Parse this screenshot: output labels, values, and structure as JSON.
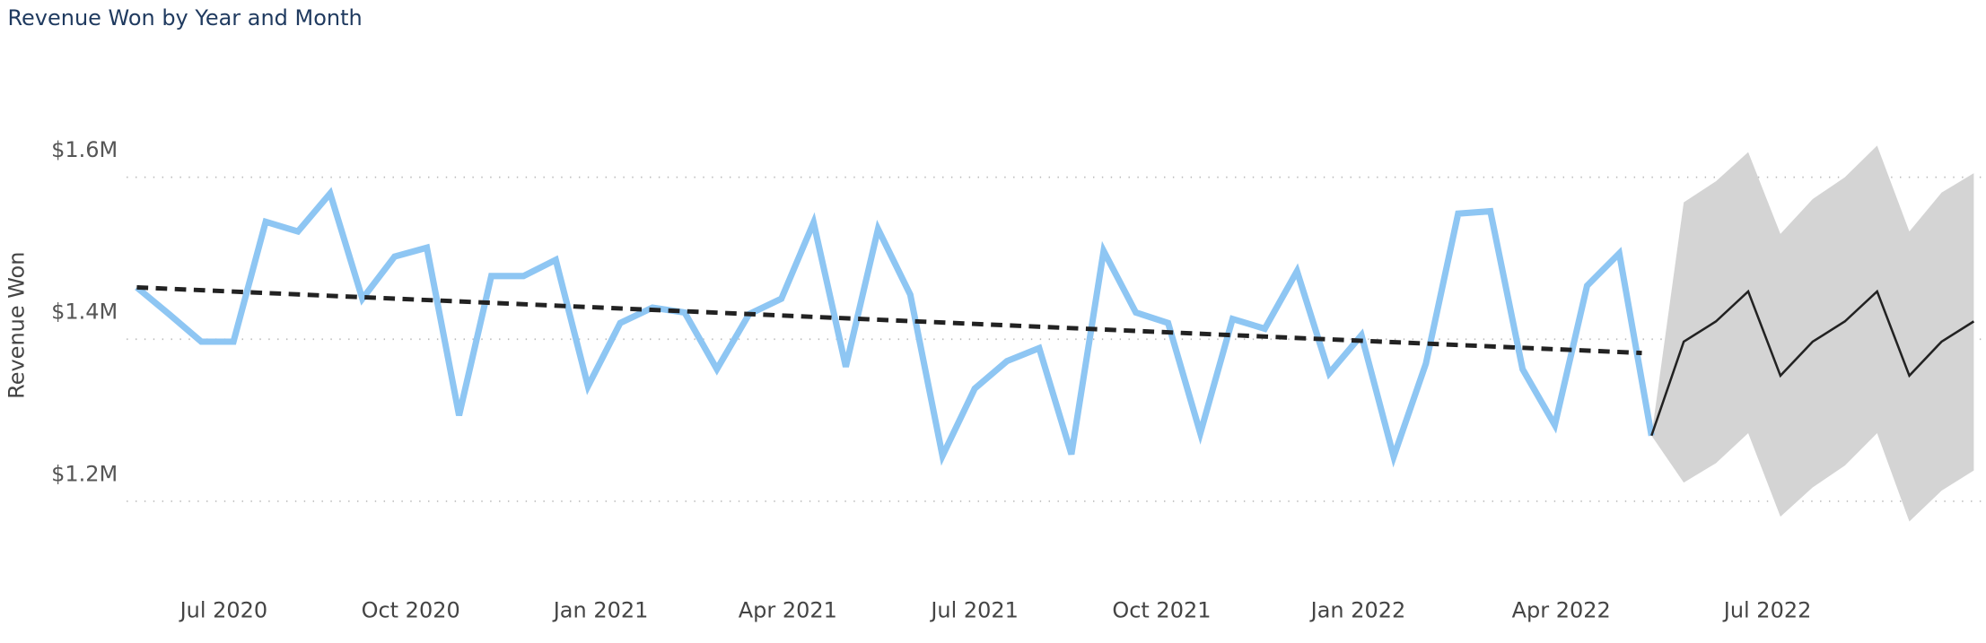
{
  "chart_data": {
    "type": "line",
    "title": "Revenue Won by Year and Month",
    "y_label": "Revenue Won",
    "xlim": [
      0,
      57.3
    ],
    "xticks": [
      {
        "value": 2.7,
        "label": "Jul 2020"
      },
      {
        "value": 8.5,
        "label": "Oct 2020"
      },
      {
        "value": 14.4,
        "label": "Jan 2021"
      },
      {
        "value": 20.2,
        "label": "Apr 2021"
      },
      {
        "value": 26.0,
        "label": "Jul 2021"
      },
      {
        "value": 31.8,
        "label": "Oct 2021"
      },
      {
        "value": 37.9,
        "label": "Jan 2022"
      },
      {
        "value": 44.2,
        "label": "Apr 2022"
      },
      {
        "value": 50.6,
        "label": "Jul 2022"
      }
    ],
    "ylim": [
      1.1,
      1.72
    ],
    "yticks": [
      {
        "value": 1.2,
        "label": "$1.2M"
      },
      {
        "value": 1.4,
        "label": "$1.4M"
      },
      {
        "value": 1.6,
        "label": "$1.6M"
      }
    ],
    "grid": true,
    "series": [
      {
        "color": "#8ec6f3",
        "x": [
          0,
          1,
          2,
          3,
          4,
          5,
          6,
          7,
          8,
          9,
          10,
          11,
          12,
          13,
          14,
          15,
          16,
          17,
          18,
          19,
          20,
          21,
          22,
          23,
          24,
          25,
          26,
          27,
          28,
          29,
          30,
          31,
          32,
          33,
          34,
          35,
          36,
          37,
          38,
          39,
          40,
          41,
          42,
          43,
          44,
          45,
          46,
          47
        ],
        "values": [
          1.464,
          1.431,
          1.397,
          1.397,
          1.545,
          1.533,
          1.58,
          1.45,
          1.502,
          1.513,
          1.306,
          1.478,
          1.478,
          1.498,
          1.342,
          1.42,
          1.439,
          1.433,
          1.363,
          1.431,
          1.45,
          1.544,
          1.366,
          1.536,
          1.455,
          1.256,
          1.339,
          1.373,
          1.389,
          1.258,
          1.509,
          1.433,
          1.42,
          1.284,
          1.425,
          1.413,
          1.484,
          1.358,
          1.405,
          1.255,
          1.37,
          1.555,
          1.558,
          1.363,
          1.294,
          1.466,
          1.506,
          1.281
        ]
      },
      {
        "color": "#222222",
        "x": [
          47,
          48,
          49,
          50,
          51,
          52,
          53,
          54,
          55,
          56,
          57
        ],
        "values": [
          1.281,
          1.397,
          1.422,
          1.459,
          1.355,
          1.397,
          1.422,
          1.459,
          1.355,
          1.397,
          1.422
        ]
      }
    ],
    "forecast_band": {
      "color": "#d4d4d4",
      "upper": [
        1.281,
        1.569,
        1.595,
        1.631,
        1.53,
        1.573,
        1.6,
        1.639,
        1.533,
        1.581,
        1.605
      ],
      "lower": [
        1.281,
        1.223,
        1.247,
        1.284,
        1.181,
        1.217,
        1.244,
        1.284,
        1.175,
        1.213,
        1.238
      ]
    },
    "trend": {
      "color": "#222222",
      "x": [
        0,
        46.7
      ],
      "values": [
        1.464,
        1.383
      ]
    }
  }
}
